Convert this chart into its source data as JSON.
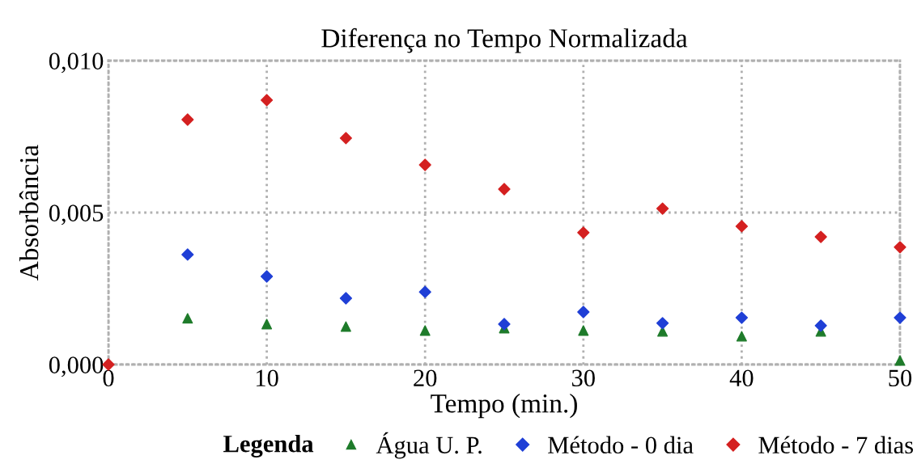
{
  "chart_data": {
    "type": "scatter",
    "title": "Diferença no Tempo Normalizada",
    "xlabel": "Tempo (min.)",
    "ylabel": "Absorbância",
    "legend_title": "Legenda",
    "x": [
      0,
      5,
      10,
      15,
      20,
      25,
      30,
      35,
      40,
      45,
      50
    ],
    "series": [
      {
        "name": "Água U. P.",
        "color": "#1e7b2a",
        "marker": "triangle",
        "values": [
          null,
          0.00152,
          0.00133,
          0.00125,
          0.00112,
          0.0012,
          0.00112,
          0.00109,
          0.00093,
          0.00109,
          0.00013
        ]
      },
      {
        "name": "Método - 0 dia",
        "color": "#1f3fd6",
        "marker": "diamond",
        "values": [
          null,
          0.00362,
          0.0029,
          0.00218,
          0.00239,
          0.00133,
          0.00173,
          0.00136,
          0.00154,
          0.00128,
          0.00154
        ]
      },
      {
        "name": "Método - 7 dias",
        "color": "#d42020",
        "marker": "diamond",
        "values": [
          0.0,
          0.00806,
          0.0087,
          0.00745,
          0.00657,
          0.00577,
          0.00434,
          0.00513,
          0.00455,
          0.0042,
          0.00386
        ]
      }
    ],
    "xlim": [
      0,
      50
    ],
    "xticks": [
      0,
      10,
      20,
      30,
      40,
      50
    ],
    "ylim": [
      0,
      0.01
    ],
    "yticks": [
      {
        "value": 0,
        "label": "0,000"
      },
      {
        "value": 0.005,
        "label": "0,005"
      },
      {
        "value": 0.01,
        "label": "0,010"
      }
    ],
    "grid": true,
    "legend": "bottom right"
  }
}
